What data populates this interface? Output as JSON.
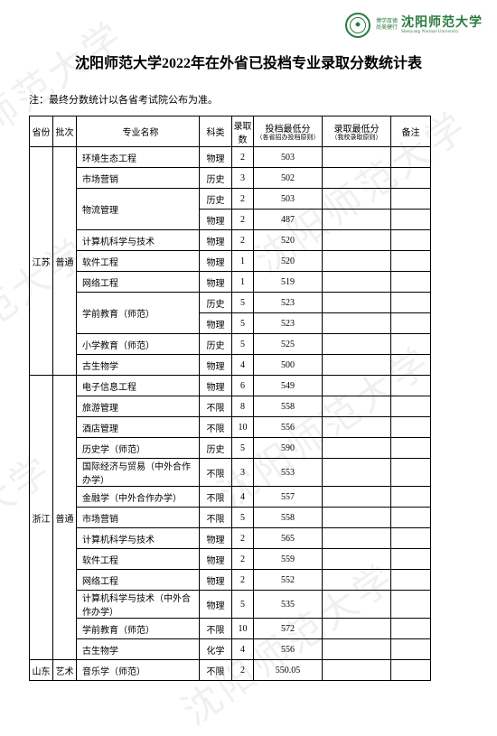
{
  "logo": {
    "motto1": "博学厚德",
    "motto2": "尚美健行",
    "name": "沈阳师范大学",
    "en": "Shenyang Normal University"
  },
  "title": "沈阳师范大学2022年在外省已投档专业录取分数统计表",
  "note": "注：最终分数统计以各省考试院公布为准。",
  "watermark": "沈阳师范大学",
  "headers": {
    "province": "省份",
    "batch": "批次",
    "major": "专业名称",
    "subject": "科类",
    "quota": "录取数",
    "score1": "投档最低分",
    "score1_sub": "（各省招办投档原则）",
    "score2": "录取最低分",
    "score2_sub": "（我校录取原则）",
    "remark": "备注"
  },
  "groups": [
    {
      "province": "江苏",
      "batch": "普通",
      "rows": [
        {
          "major": "环境生态工程",
          "subject": "物理",
          "quota": "2",
          "s1": "503",
          "rowspan": 1
        },
        {
          "major": "市场营销",
          "subject": "历史",
          "quota": "3",
          "s1": "502",
          "rowspan": 1
        },
        {
          "major": "物流管理",
          "subject": "历史",
          "quota": "2",
          "s1": "503",
          "rowspan": 2
        },
        {
          "major": "",
          "subject": "物理",
          "quota": "2",
          "s1": "487",
          "rowspan": 0
        },
        {
          "major": "计算机科学与技术",
          "subject": "物理",
          "quota": "2",
          "s1": "520",
          "rowspan": 1
        },
        {
          "major": "软件工程",
          "subject": "物理",
          "quota": "1",
          "s1": "520",
          "rowspan": 1
        },
        {
          "major": "网络工程",
          "subject": "物理",
          "quota": "1",
          "s1": "519",
          "rowspan": 1
        },
        {
          "major": "学前教育（师范）",
          "subject": "历史",
          "quota": "5",
          "s1": "523",
          "rowspan": 2
        },
        {
          "major": "",
          "subject": "物理",
          "quota": "5",
          "s1": "523",
          "rowspan": 0
        },
        {
          "major": "小学教育（师范）",
          "subject": "历史",
          "quota": "5",
          "s1": "525",
          "rowspan": 1
        },
        {
          "major": "古生物学",
          "subject": "物理",
          "quota": "4",
          "s1": "500",
          "rowspan": 1
        }
      ]
    },
    {
      "province": "浙江",
      "batch": "普通",
      "rows": [
        {
          "major": "电子信息工程",
          "subject": "物理",
          "quota": "6",
          "s1": "549",
          "rowspan": 1
        },
        {
          "major": "旅游管理",
          "subject": "不限",
          "quota": "8",
          "s1": "558",
          "rowspan": 1
        },
        {
          "major": "酒店管理",
          "subject": "不限",
          "quota": "10",
          "s1": "556",
          "rowspan": 1
        },
        {
          "major": "历史学（师范）",
          "subject": "历史",
          "quota": "5",
          "s1": "590",
          "rowspan": 1
        },
        {
          "major": "国际经济与贸易（中外合作办学）",
          "subject": "不限",
          "quota": "3",
          "s1": "553",
          "rowspan": 1
        },
        {
          "major": "金融学（中外合作办学）",
          "subject": "不限",
          "quota": "4",
          "s1": "557",
          "rowspan": 1
        },
        {
          "major": "市场营销",
          "subject": "不限",
          "quota": "5",
          "s1": "558",
          "rowspan": 1
        },
        {
          "major": "计算机科学与技术",
          "subject": "物理",
          "quota": "2",
          "s1": "565",
          "rowspan": 1
        },
        {
          "major": "软件工程",
          "subject": "物理",
          "quota": "2",
          "s1": "559",
          "rowspan": 1
        },
        {
          "major": "网络工程",
          "subject": "物理",
          "quota": "2",
          "s1": "552",
          "rowspan": 1
        },
        {
          "major": "计算机科学与技术（中外合作办学）",
          "subject": "物理",
          "quota": "5",
          "s1": "535",
          "rowspan": 1
        },
        {
          "major": "学前教育（师范）",
          "subject": "不限",
          "quota": "10",
          "s1": "572",
          "rowspan": 1
        },
        {
          "major": "古生物学",
          "subject": "化学",
          "quota": "4",
          "s1": "556",
          "rowspan": 1
        }
      ]
    },
    {
      "province": "山东",
      "batch": "艺术",
      "rows": [
        {
          "major": "音乐学（师范）",
          "subject": "不限",
          "quota": "2",
          "s1": "550.05",
          "rowspan": 1
        }
      ]
    }
  ]
}
